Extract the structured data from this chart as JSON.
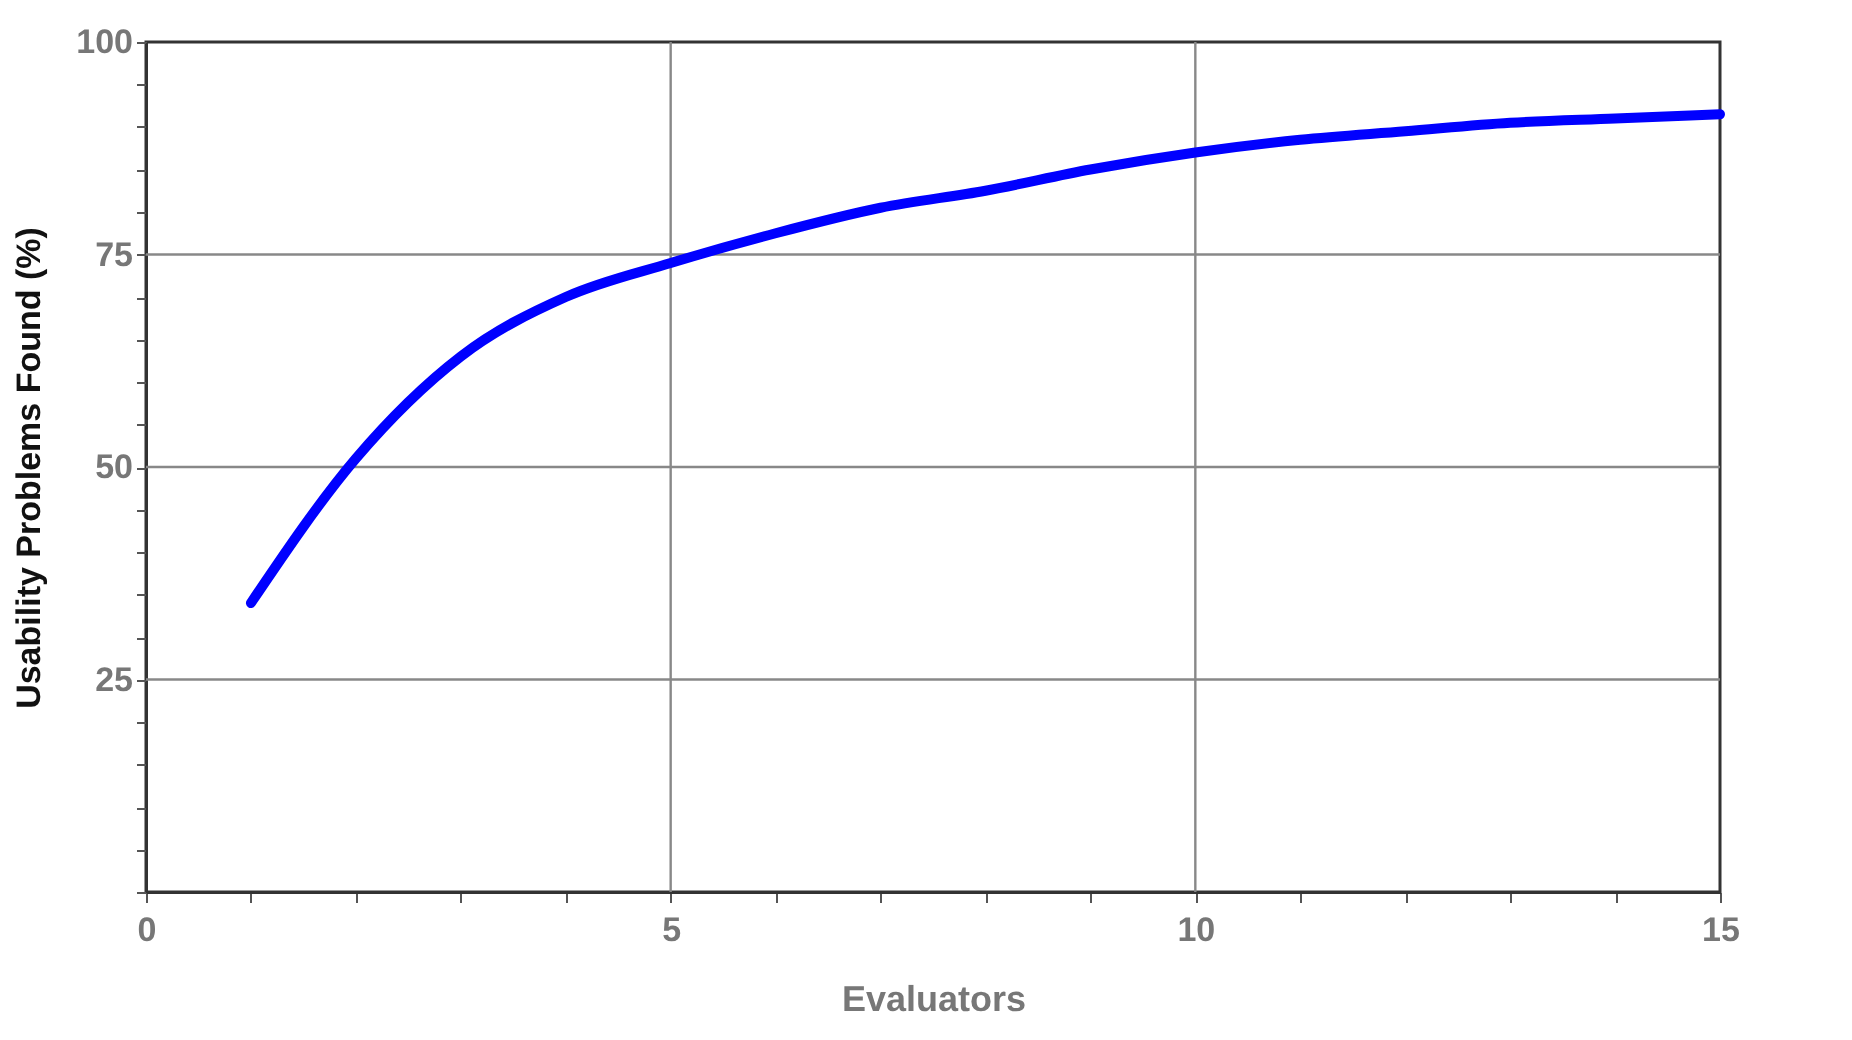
{
  "chart_data": {
    "type": "line",
    "xlabel": "Evaluators",
    "ylabel": "Usability Problems Found (%)",
    "x": [
      1,
      2,
      3,
      4,
      5,
      6,
      7,
      8,
      9,
      10,
      11,
      12,
      13,
      14,
      15
    ],
    "series": [
      {
        "color": "#0000ff",
        "values": [
          34,
          51,
          63,
          70,
          74,
          77.5,
          80.5,
          82.5,
          85,
          87,
          88.5,
          89.5,
          90.5,
          91,
          91.5
        ]
      }
    ],
    "xlim": [
      0,
      15
    ],
    "ylim": [
      0,
      100
    ],
    "xticks": [
      0,
      {
        "value": 1,
        "label": null
      },
      {
        "value": 2,
        "label": null
      },
      {
        "value": 3,
        "label": null
      },
      {
        "value": 4,
        "label": null
      },
      5,
      {
        "value": 6,
        "label": null
      },
      {
        "value": 7,
        "label": null
      },
      {
        "value": 8,
        "label": null
      },
      {
        "value": 9,
        "label": null
      },
      10,
      {
        "value": 11,
        "label": null
      },
      {
        "value": 12,
        "label": null
      },
      {
        "value": 13,
        "label": null
      },
      {
        "value": 14,
        "label": null
      },
      15
    ],
    "yticks": [
      {
        "value": 0,
        "label": null
      },
      {
        "value": 5,
        "label": null
      },
      {
        "value": 10,
        "label": null
      },
      {
        "value": 15,
        "label": null
      },
      {
        "value": 20,
        "label": null
      },
      25,
      {
        "value": 30,
        "label": null
      },
      {
        "value": 35,
        "label": null
      },
      {
        "value": 40,
        "label": null
      },
      {
        "value": 45,
        "label": null
      },
      50,
      {
        "value": 55,
        "label": null
      },
      {
        "value": 60,
        "label": null
      },
      {
        "value": 65,
        "label": null
      },
      {
        "value": 70,
        "label": null
      },
      75,
      {
        "value": 80,
        "label": null
      },
      {
        "value": 85,
        "label": null
      },
      {
        "value": 90,
        "label": null
      },
      {
        "value": 95,
        "label": null
      },
      100
    ],
    "grid": true,
    "marker": "none",
    "line_style": "solid"
  }
}
